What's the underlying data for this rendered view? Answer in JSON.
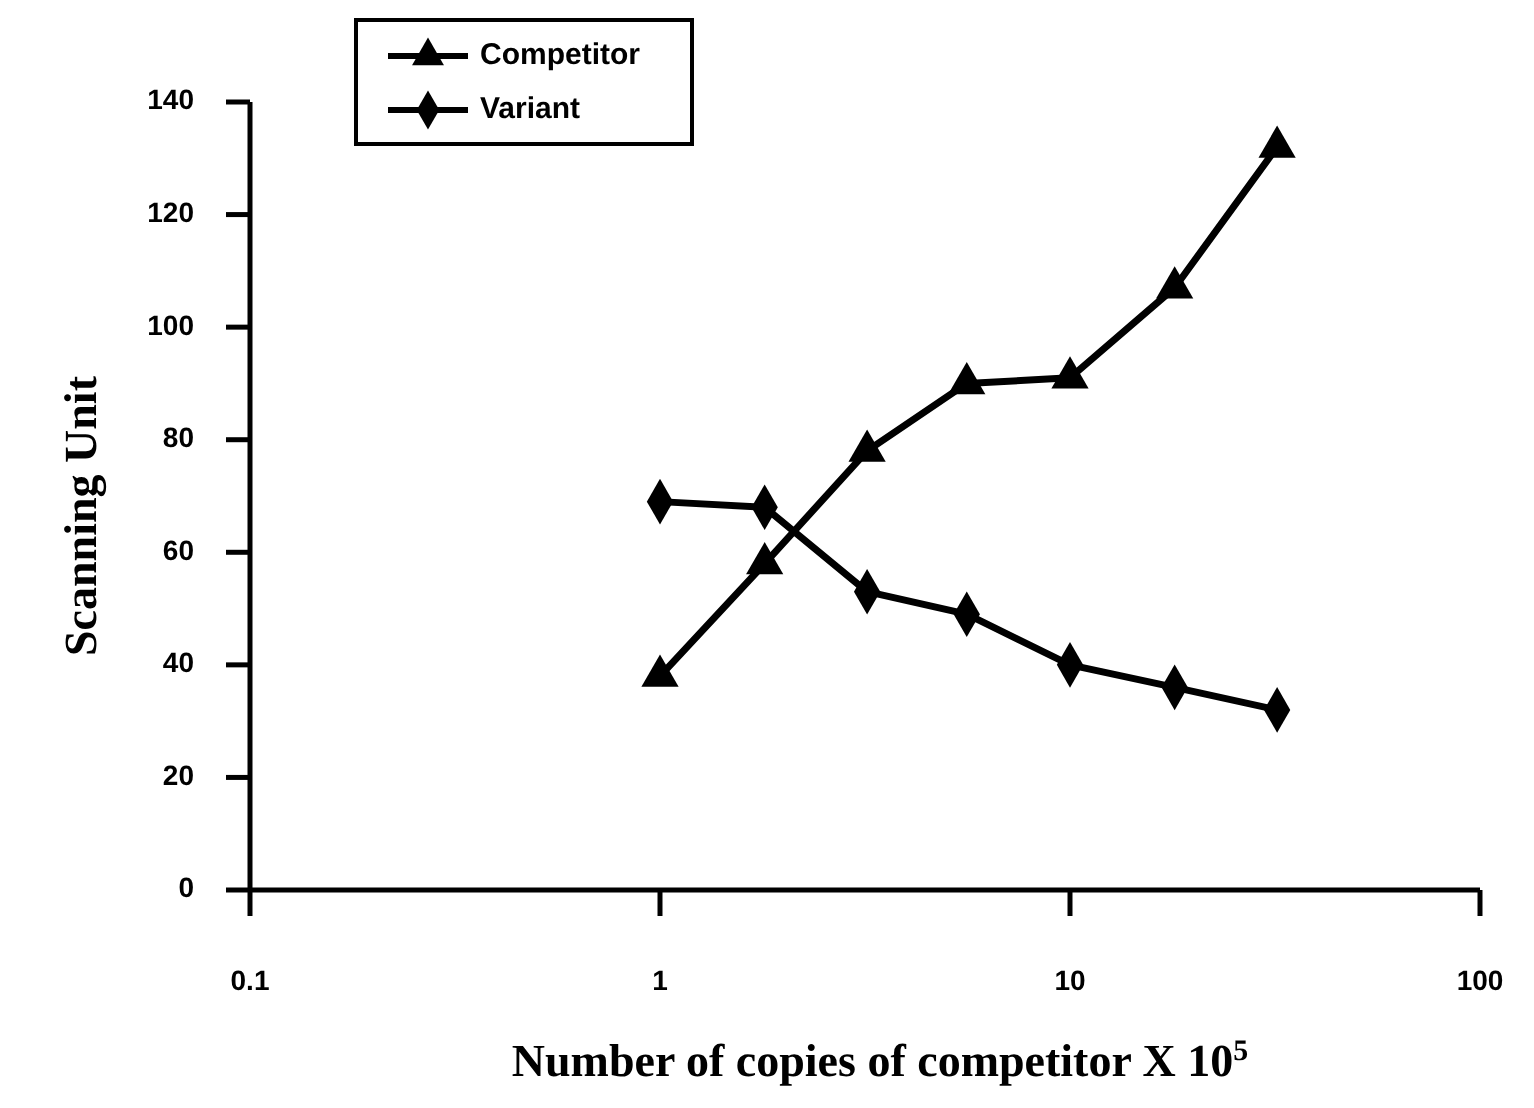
{
  "chart_data": {
    "type": "line",
    "xlabel": "Number of copies of competitor X 10$^{5}$",
    "ylabel": "Scanning Unit",
    "x": [
      1,
      1.8,
      3.2,
      5.6,
      10,
      18,
      32
    ],
    "xlim": [
      0.1,
      100
    ],
    "xticks": [
      0.1,
      1,
      10,
      100
    ],
    "log": "x",
    "ylim": [
      0,
      140
    ],
    "yticks": [
      0,
      20,
      40,
      60,
      80,
      100,
      120,
      140
    ],
    "legend": "top left",
    "grid": false,
    "line_style": "solid",
    "series": [
      {
        "name": "Competitor",
        "color": "#000000",
        "marker": "triangle",
        "values": [
          38,
          58,
          78,
          90,
          91,
          107,
          132
        ]
      },
      {
        "name": "Variant",
        "color": "#000000",
        "marker": "diamond",
        "values": [
          69,
          68,
          53,
          49,
          40,
          36,
          32
        ]
      }
    ]
  }
}
